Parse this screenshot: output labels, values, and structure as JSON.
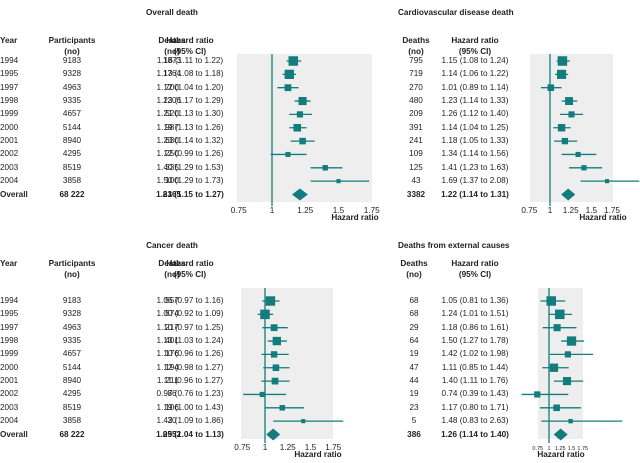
{
  "headers": {
    "year": "Year",
    "participants": "Participants",
    "participants_unit": "(no)",
    "deaths": "Deaths",
    "deaths_unit": "(no)",
    "hr": "Hazard ratio",
    "hr_unit": "(95% CI)",
    "axis_label": "Hazard ratio"
  },
  "colors": {
    "marker": "#137c7c",
    "panel": "#eeeeee",
    "text": "#222222"
  },
  "years": [
    "1994",
    "1995",
    "1997",
    "1998",
    "1999",
    "2000",
    "2001",
    "2002",
    "2003",
    "2004",
    "Overall"
  ],
  "participants": [
    "9183",
    "9328",
    "4963",
    "9335",
    "4657",
    "5144",
    "8940",
    "4295",
    "8519",
    "3858",
    "68 222"
  ],
  "chart_data": [
    {
      "type": "forest",
      "title": "Overall death",
      "xlabel": "Hazard ratio",
      "xticks": [
        "0.75",
        "1",
        "1.25",
        "1.5",
        "1.75"
      ],
      "xlim": [
        0.75,
        1.75
      ],
      "reference_line": 1,
      "deaths": [
        "1873",
        "1764",
        "700",
        "1206",
        "520",
        "987",
        "630",
        "250",
        "335",
        "100",
        "8365"
      ],
      "hr_text": [
        "1.16 (1.11 to 1.22)",
        "1.13 (1.08 to 1.18)",
        "1.12 (1.04 to 1.20)",
        "1.23 (1.17 to 1.29)",
        "1.21 (1.13 to 1.30)",
        "1.19 (1.13 to 1.26)",
        "1.23 (1.14 to 1.32)",
        "1.12 (0.99 to 1.26)",
        "1.40 (1.29 to 1.53)",
        "1.50 (1.29 to 1.73)",
        "1.21 (1.15 to 1.27)"
      ],
      "hr": [
        1.16,
        1.13,
        1.12,
        1.23,
        1.21,
        1.19,
        1.23,
        1.12,
        1.4,
        1.5,
        1.21
      ],
      "lo": [
        1.11,
        1.08,
        1.04,
        1.17,
        1.13,
        1.13,
        1.14,
        0.99,
        1.29,
        1.29,
        1.15
      ],
      "hi": [
        1.22,
        1.18,
        1.2,
        1.29,
        1.3,
        1.26,
        1.32,
        1.26,
        1.53,
        1.73,
        1.27
      ]
    },
    {
      "type": "forest",
      "title": "Cardiovascular disease death",
      "xlabel": "Hazard ratio",
      "xticks": [
        "0.75",
        "1",
        "1.25",
        "1.5",
        "1.75"
      ],
      "xlim": [
        0.75,
        1.75
      ],
      "reference_line": 1,
      "deaths": [
        "795",
        "719",
        "270",
        "480",
        "209",
        "391",
        "241",
        "109",
        "125",
        "43",
        "3382"
      ],
      "hr_text": [
        "1.15 (1.08 to 1.24)",
        "1.14 (1.06 to 1.22)",
        "1.01 (0.89 to 1.14)",
        "1.23 (1.14 to 1.33)",
        "1.26 (1.12 to 1.40)",
        "1.14 (1.04 to 1.25)",
        "1.18 (1.05 to 1.33)",
        "1.34 (1.14 to 1.56)",
        "1.41 (1.23 to 1.63)",
        "1.69 (1.37 to 2.08)",
        "1.22 (1.14 to 1.31)"
      ],
      "hr": [
        1.15,
        1.14,
        1.01,
        1.23,
        1.26,
        1.14,
        1.18,
        1.34,
        1.41,
        1.69,
        1.22
      ],
      "lo": [
        1.08,
        1.06,
        0.89,
        1.14,
        1.12,
        1.04,
        1.05,
        1.14,
        1.23,
        1.37,
        1.14
      ],
      "hi": [
        1.24,
        1.22,
        1.14,
        1.33,
        1.4,
        1.25,
        1.33,
        1.56,
        1.63,
        2.08,
        1.31
      ]
    },
    {
      "type": "forest",
      "title": "Cancer death",
      "xlabel": "Hazard ratio",
      "xticks": [
        "0.75",
        "1",
        "1.25",
        "1.5",
        "1.75"
      ],
      "xlim": [
        0.75,
        1.75
      ],
      "reference_line": 1,
      "deaths": [
        "557",
        "574",
        "217",
        "401",
        "176",
        "194",
        "211",
        "86",
        "106",
        "30",
        "2552"
      ],
      "hr_text": [
        "1.06 (0.97 to 1.16)",
        "1.00 (0.92 to 1.09)",
        "1.10 (0.97 to 1.25)",
        "1.13 (1.03 to 1.24)",
        "1.10 (0.96 to 1.26)",
        "1.12 (0.98 to 1.27)",
        "1.11 (0.96 to 1.27)",
        "0.97 (0.76 to 1.23)",
        "1.19 (1.00 to 1.43)",
        "1.42 (1.09 to 1.86)",
        "1.09 (1.04 to 1.13)"
      ],
      "hr": [
        1.06,
        1.0,
        1.1,
        1.13,
        1.1,
        1.12,
        1.11,
        0.97,
        1.19,
        1.42,
        1.09
      ],
      "lo": [
        0.97,
        0.92,
        0.97,
        1.03,
        0.96,
        0.98,
        0.96,
        0.76,
        1.0,
        1.09,
        1.04
      ],
      "hi": [
        1.16,
        1.09,
        1.25,
        1.24,
        1.26,
        1.27,
        1.27,
        1.23,
        1.43,
        1.86,
        1.13
      ]
    },
    {
      "type": "forest",
      "title": "Deaths from external causes",
      "xlabel": "Hazard ratio",
      "xticks": [
        "0.75",
        "1",
        "1.25",
        "1.5",
        "1.75"
      ],
      "xlim": [
        0.75,
        1.75
      ],
      "reference_line": 1,
      "deaths": [
        "68",
        "68",
        "29",
        "64",
        "19",
        "47",
        "44",
        "19",
        "23",
        "5",
        "386"
      ],
      "hr_text": [
        "1.05 (0.81 to 1.36)",
        "1.24 (1.01 to 1.51)",
        "1.18 (0.86 to 1.61)",
        "1.50 (1.27 to 1.78)",
        "1.42 (1.02 to 1.98)",
        "1.11 (0.85 to 1.44)",
        "1.40 (1.11 to 1.76)",
        "0.74 (0.39 to 1.43)",
        "1.17 (0.80 to 1.71)",
        "1.48 (0.83 to 2.63)",
        "1.26 (1.14 to 1.40)"
      ],
      "hr": [
        1.05,
        1.24,
        1.18,
        1.5,
        1.42,
        1.11,
        1.4,
        0.74,
        1.17,
        1.48,
        1.26
      ],
      "lo": [
        0.81,
        1.01,
        0.86,
        1.27,
        1.02,
        0.85,
        1.11,
        0.39,
        0.8,
        0.83,
        1.14
      ],
      "hi": [
        1.36,
        1.51,
        1.61,
        1.78,
        1.98,
        1.44,
        1.76,
        1.43,
        1.71,
        2.63,
        1.4
      ]
    }
  ]
}
